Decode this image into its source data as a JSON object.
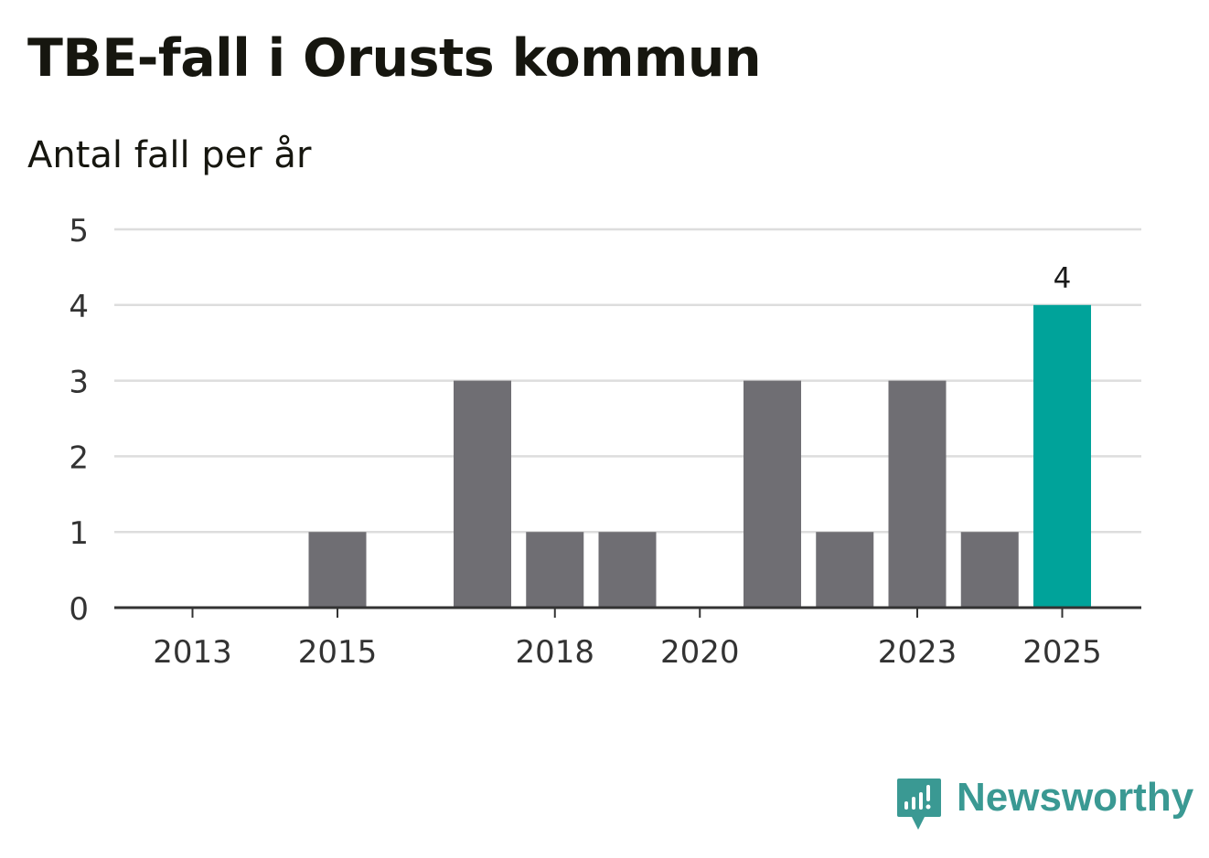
{
  "header": {
    "title": "TBE-fall i Orusts kommun",
    "subtitle": "Antal fall per år"
  },
  "brand": {
    "name": "Newsworthy",
    "icon": "newsworthy-logo-icon",
    "color": "#3a9993"
  },
  "chart_data": {
    "type": "bar",
    "title": "TBE-fall i Orusts kommun",
    "subtitle": "Antal fall per år",
    "categories": [
      "2013",
      "2014",
      "2015",
      "2016",
      "2017",
      "2018",
      "2019",
      "2020",
      "2021",
      "2022",
      "2023",
      "2024",
      "2025"
    ],
    "values": [
      0,
      0,
      1,
      0,
      3,
      1,
      1,
      0,
      3,
      1,
      3,
      1,
      4
    ],
    "x_tick_labels": [
      "2013",
      "2015",
      "2018",
      "2020",
      "2023",
      "2025"
    ],
    "y_ticks": [
      0,
      1,
      2,
      3,
      4,
      5
    ],
    "ylim": [
      0,
      5
    ],
    "grid": true,
    "highlight": {
      "category": "2025",
      "color": "#00a39a",
      "data_label": "4"
    },
    "bar_color": "#6f6e73",
    "grid_color": "#dddddd",
    "axis_color": "#333333"
  }
}
